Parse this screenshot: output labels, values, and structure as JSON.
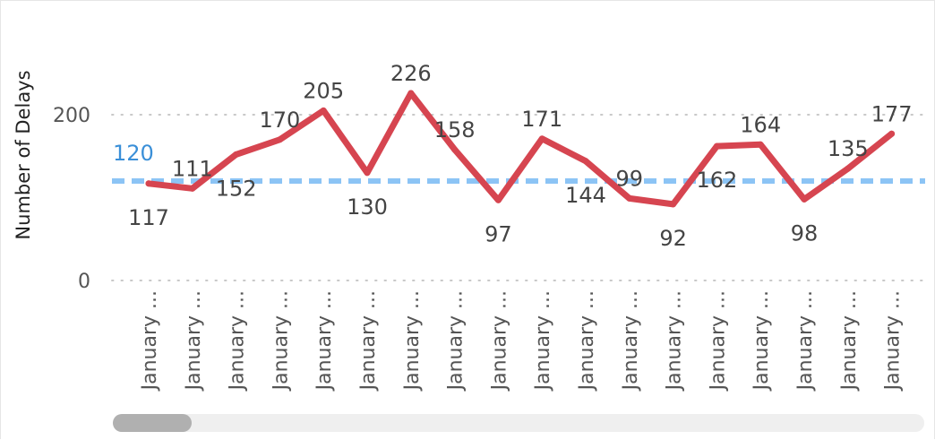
{
  "chart_data": {
    "type": "line",
    "ylabel": "Number of Delays",
    "y_ticks": [
      0,
      200
    ],
    "ylim": [
      0,
      300
    ],
    "grid": true,
    "categories": [
      "January ...",
      "January ...",
      "January ...",
      "January ...",
      "January ...",
      "January ...",
      "January ...",
      "January ...",
      "January ...",
      "January ...",
      "January ...",
      "January ...",
      "January ...",
      "January ...",
      "January ...",
      "January ...",
      "January ...",
      "January ..."
    ],
    "series": [
      {
        "values": [
          117,
          111,
          152,
          170,
          205,
          130,
          226,
          158,
          97,
          171,
          144,
          99,
          92,
          162,
          164,
          98,
          135,
          177
        ],
        "color": "#d64550"
      }
    ],
    "reference_line": {
      "value": 120,
      "label": "120",
      "color": "#8cc4f5",
      "label_color": "#3a8fd8"
    }
  },
  "scrollbar": {
    "position": 0
  }
}
